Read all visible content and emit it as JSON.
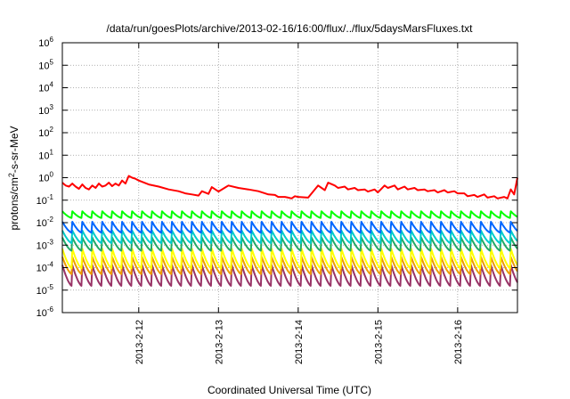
{
  "chart_data": {
    "type": "line",
    "title": "/data/run/goesPlots/archive/2013-02-16/16:00/flux/../flux/5daysMarsFluxes.txt",
    "xlabel": "Coordinated Universal Time (UTC)",
    "ylabel": {
      "prefix": "protons/cm",
      "sup": "2",
      "suffix": "-s-sr-MeV"
    },
    "y_scale": "log",
    "ylim": [
      1e-06,
      1000000.0
    ],
    "y_ticks": [
      {
        "value": 1e-06,
        "base": "10",
        "exp": "-6"
      },
      {
        "value": 1e-05,
        "base": "10",
        "exp": "-5"
      },
      {
        "value": 0.0001,
        "base": "10",
        "exp": "-4"
      },
      {
        "value": 0.001,
        "base": "10",
        "exp": "-3"
      },
      {
        "value": 0.01,
        "base": "10",
        "exp": "-2"
      },
      {
        "value": 0.1,
        "base": "10",
        "exp": "-1"
      },
      {
        "value": 1,
        "base": "10",
        "exp": "0"
      },
      {
        "value": 10.0,
        "base": "10",
        "exp": "1"
      },
      {
        "value": 100.0,
        "base": "10",
        "exp": "2"
      },
      {
        "value": 1000.0,
        "base": "10",
        "exp": "3"
      },
      {
        "value": 10000.0,
        "base": "10",
        "exp": "4"
      },
      {
        "value": 100000.0,
        "base": "10",
        "exp": "5"
      },
      {
        "value": 1000000.0,
        "base": "10",
        "exp": "6"
      }
    ],
    "xlim": [
      "2013-02-11T01:00",
      "2013-02-16T18:00"
    ],
    "x_ticks": [
      {
        "value": "2013-02-12T00:00",
        "label": "2013-2-12"
      },
      {
        "value": "2013-02-13T00:00",
        "label": "2013-2-13"
      },
      {
        "value": "2013-02-14T00:00",
        "label": "2013-2-14"
      },
      {
        "value": "2013-02-15T00:00",
        "label": "2013-2-15"
      },
      {
        "value": "2013-02-16T00:00",
        "label": "2013-2-16"
      }
    ],
    "grid": true,
    "series": [
      {
        "color": "#ff0000",
        "x": [
          "2013-02-11T01:00",
          "2013-02-11T02:00",
          "2013-02-11T03:00",
          "2013-02-11T04:00",
          "2013-02-11T05:00",
          "2013-02-11T06:00",
          "2013-02-11T07:00",
          "2013-02-11T08:00",
          "2013-02-11T09:00",
          "2013-02-11T10:00",
          "2013-02-11T11:00",
          "2013-02-11T12:00",
          "2013-02-11T13:00",
          "2013-02-11T14:00",
          "2013-02-11T15:00",
          "2013-02-11T16:00",
          "2013-02-11T17:00",
          "2013-02-11T18:00",
          "2013-02-11T19:00",
          "2013-02-11T20:00",
          "2013-02-11T21:00",
          "2013-02-11T22:00",
          "2013-02-11T23:00",
          "2013-02-12T00:00",
          "2013-02-12T03:00",
          "2013-02-12T06:00",
          "2013-02-12T09:00",
          "2013-02-12T12:00",
          "2013-02-12T14:00",
          "2013-02-12T16:00",
          "2013-02-12T18:00",
          "2013-02-12T19:00",
          "2013-02-12T21:00",
          "2013-02-12T22:00",
          "2013-02-13T00:00",
          "2013-02-13T03:00",
          "2013-02-13T06:00",
          "2013-02-13T09:00",
          "2013-02-13T12:00",
          "2013-02-13T14:00",
          "2013-02-13T15:00",
          "2013-02-13T17:00",
          "2013-02-13T18:00",
          "2013-02-13T20:00",
          "2013-02-13T21:00",
          "2013-02-13T22:00",
          "2013-02-13T23:00",
          "2013-02-14T00:00",
          "2013-02-14T03:00",
          "2013-02-14T06:00",
          "2013-02-14T08:00",
          "2013-02-14T09:00",
          "2013-02-14T11:00",
          "2013-02-14T12:00",
          "2013-02-14T14:00",
          "2013-02-14T15:00",
          "2013-02-14T17:00",
          "2013-02-14T18:00",
          "2013-02-14T20:00",
          "2013-02-14T21:00",
          "2013-02-14T23:00",
          "2013-02-15T00:00",
          "2013-02-15T02:00",
          "2013-02-15T03:00",
          "2013-02-15T05:00",
          "2013-02-15T06:00",
          "2013-02-15T08:00",
          "2013-02-15T09:00",
          "2013-02-15T11:00",
          "2013-02-15T12:00",
          "2013-02-15T14:00",
          "2013-02-15T15:00",
          "2013-02-15T17:00",
          "2013-02-15T18:00",
          "2013-02-15T20:00",
          "2013-02-15T21:00",
          "2013-02-15T23:00",
          "2013-02-16T00:00",
          "2013-02-16T02:00",
          "2013-02-16T03:00",
          "2013-02-16T05:00",
          "2013-02-16T06:00",
          "2013-02-16T08:00",
          "2013-02-16T09:00",
          "2013-02-16T11:00",
          "2013-02-16T12:00",
          "2013-02-16T14:00",
          "2013-02-16T15:00",
          "2013-02-16T16:00",
          "2013-02-16T17:00",
          "2013-02-16T18:00"
        ],
        "values": [
          0.6,
          0.45,
          0.4,
          0.55,
          0.4,
          0.32,
          0.5,
          0.35,
          0.3,
          0.45,
          0.35,
          0.55,
          0.4,
          0.45,
          0.6,
          0.42,
          0.55,
          0.45,
          0.75,
          0.55,
          1.2,
          1.0,
          0.9,
          0.75,
          0.5,
          0.4,
          0.3,
          0.25,
          0.2,
          0.18,
          0.16,
          0.25,
          0.19,
          0.38,
          0.24,
          0.45,
          0.35,
          0.3,
          0.25,
          0.2,
          0.18,
          0.17,
          0.14,
          0.14,
          0.13,
          0.12,
          0.15,
          0.14,
          0.13,
          0.45,
          0.28,
          0.6,
          0.45,
          0.35,
          0.4,
          0.3,
          0.35,
          0.28,
          0.3,
          0.24,
          0.3,
          0.22,
          0.45,
          0.35,
          0.45,
          0.3,
          0.4,
          0.3,
          0.35,
          0.28,
          0.3,
          0.25,
          0.28,
          0.22,
          0.28,
          0.22,
          0.25,
          0.2,
          0.2,
          0.15,
          0.17,
          0.14,
          0.18,
          0.13,
          0.15,
          0.12,
          0.14,
          0.12,
          0.3,
          0.18,
          1.0
        ]
      },
      {
        "color": "#00ff00",
        "shape": "sawtooth",
        "peak": 0.032,
        "trough": 0.016
      },
      {
        "color": "#0066ff",
        "shape": "sawtooth",
        "peak": 0.011,
        "trough": 0.0035
      },
      {
        "color": "#00cccc",
        "shape": "sawtooth",
        "peak": 0.0045,
        "trough": 0.0012
      },
      {
        "color": "#22aa66",
        "shape": "sawtooth",
        "peak": 0.0022,
        "trough": 0.00055
      },
      {
        "color": "#ffff00",
        "shape": "sawtooth",
        "peak": 0.0007,
        "trough": 9e-05
      },
      {
        "color": "#ee9900",
        "shape": "sawtooth",
        "peak": 0.0003,
        "trough": 5e-05
      },
      {
        "color": "#993366",
        "shape": "sawtooth",
        "peak": 0.00013,
        "trough": 1.5e-05
      }
    ],
    "sawtooth_period_hours": 3
  }
}
